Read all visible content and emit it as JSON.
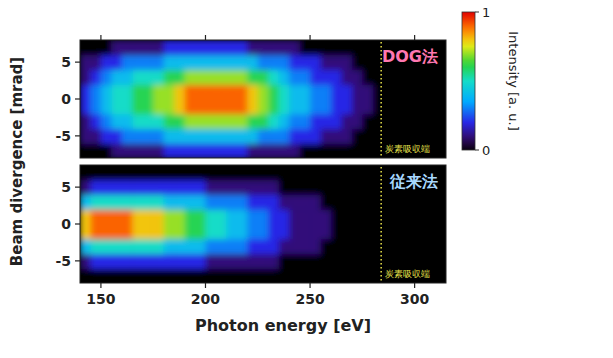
{
  "chart_data": [
    {
      "type": "heatmap",
      "title": "DOG法",
      "ylabel": "Beam divergence [mrad]",
      "xlim": [
        140,
        315
      ],
      "ylim": [
        -8,
        8
      ],
      "xticks": [
        150,
        200,
        250,
        300
      ],
      "yticks": [
        -5,
        0,
        5
      ],
      "tick_labels": "y",
      "x_bins": [
        140,
        145,
        150,
        155,
        160,
        165,
        170,
        175,
        180,
        185,
        190,
        195,
        200,
        205,
        210,
        215,
        220,
        225,
        230,
        235,
        240,
        245,
        250,
        255,
        260,
        265,
        270,
        275,
        280,
        285,
        290,
        295,
        300,
        305,
        310,
        315
      ],
      "y_bins": [
        -8,
        -6,
        -4,
        -2,
        0,
        2,
        4,
        6,
        8
      ],
      "cells": [
        [
          0,
          0,
          0,
          0.1,
          0.1,
          0.1,
          0.1,
          0.1,
          0.2,
          0.2,
          0.2,
          0.2,
          0.2,
          0.2,
          0.2,
          0.2,
          0.1,
          0.1,
          0.1,
          0.1,
          0.1,
          0,
          0,
          0,
          0,
          0,
          0,
          0,
          0,
          0,
          0,
          0,
          0,
          0,
          0
        ],
        [
          0.1,
          0.1,
          0.2,
          0.2,
          0.3,
          0.3,
          0.3,
          0.3,
          0.4,
          0.4,
          0.4,
          0.4,
          0.4,
          0.4,
          0.4,
          0.4,
          0.4,
          0.3,
          0.3,
          0.3,
          0.2,
          0.2,
          0.2,
          0.1,
          0.1,
          0.1,
          0,
          0,
          0,
          0,
          0,
          0,
          0,
          0,
          0
        ],
        [
          0.1,
          0.2,
          0.3,
          0.4,
          0.4,
          0.5,
          0.5,
          0.5,
          0.6,
          0.6,
          0.7,
          0.7,
          0.7,
          0.7,
          0.7,
          0.7,
          0.6,
          0.6,
          0.5,
          0.4,
          0.3,
          0.3,
          0.2,
          0.2,
          0.2,
          0.1,
          0.1,
          0,
          0,
          0,
          0,
          0,
          0,
          0,
          0
        ],
        [
          0.2,
          0.3,
          0.4,
          0.5,
          0.5,
          0.6,
          0.6,
          0.7,
          0.7,
          0.8,
          0.9,
          0.9,
          0.9,
          0.9,
          0.9,
          0.9,
          0.8,
          0.7,
          0.6,
          0.5,
          0.4,
          0.4,
          0.3,
          0.3,
          0.2,
          0.2,
          0.1,
          0.1,
          0,
          0,
          0,
          0,
          0,
          0,
          0
        ],
        [
          0.2,
          0.3,
          0.4,
          0.5,
          0.5,
          0.6,
          0.6,
          0.7,
          0.7,
          0.8,
          0.9,
          0.9,
          0.9,
          0.9,
          0.9,
          0.9,
          0.8,
          0.7,
          0.6,
          0.5,
          0.4,
          0.4,
          0.3,
          0.3,
          0.2,
          0.2,
          0.1,
          0.1,
          0,
          0,
          0,
          0,
          0,
          0,
          0
        ],
        [
          0.1,
          0.2,
          0.3,
          0.4,
          0.4,
          0.5,
          0.5,
          0.5,
          0.6,
          0.6,
          0.7,
          0.7,
          0.7,
          0.7,
          0.7,
          0.7,
          0.6,
          0.6,
          0.5,
          0.4,
          0.3,
          0.3,
          0.2,
          0.2,
          0.2,
          0.1,
          0.1,
          0,
          0,
          0,
          0,
          0,
          0,
          0,
          0
        ],
        [
          0.1,
          0.1,
          0.2,
          0.2,
          0.3,
          0.3,
          0.3,
          0.3,
          0.4,
          0.4,
          0.4,
          0.4,
          0.4,
          0.4,
          0.4,
          0.4,
          0.4,
          0.3,
          0.3,
          0.3,
          0.2,
          0.2,
          0.2,
          0.1,
          0.1,
          0.1,
          0,
          0,
          0,
          0,
          0,
          0,
          0,
          0,
          0
        ],
        [
          0,
          0,
          0,
          0.1,
          0.1,
          0.1,
          0.1,
          0.1,
          0.2,
          0.2,
          0.2,
          0.2,
          0.2,
          0.2,
          0.2,
          0.2,
          0.1,
          0.1,
          0.1,
          0.1,
          0.1,
          0,
          0,
          0,
          0,
          0,
          0,
          0,
          0,
          0,
          0,
          0,
          0,
          0,
          0
        ]
      ],
      "annotations": [
        {
          "x": 284,
          "label": "炭素吸収端"
        }
      ],
      "colorbar": {
        "range": [
          0,
          1
        ],
        "ticks": [
          0,
          1
        ],
        "label": "Intensity [a. u.]"
      }
    },
    {
      "type": "heatmap",
      "title": "従来法",
      "xlabel": "Photon energy [eV]",
      "xlim": [
        140,
        315
      ],
      "ylim": [
        -8,
        8
      ],
      "xticks": [
        150,
        200,
        250,
        300
      ],
      "yticks": [
        -5,
        0,
        5
      ],
      "x_bins": [
        140,
        145,
        150,
        155,
        160,
        165,
        170,
        175,
        180,
        185,
        190,
        195,
        200,
        205,
        210,
        215,
        220,
        225,
        230,
        235,
        240,
        245,
        250,
        255,
        260,
        265,
        270,
        275,
        280,
        285,
        290,
        295,
        300,
        305,
        310,
        315
      ],
      "y_bins": [
        -8,
        -6,
        -4,
        -2,
        0,
        2,
        4,
        6,
        8
      ],
      "cells": [
        [
          0,
          0,
          0,
          0,
          0,
          0,
          0,
          0,
          0,
          0,
          0,
          0,
          0,
          0,
          0,
          0,
          0,
          0,
          0,
          0,
          0,
          0,
          0,
          0,
          0,
          0,
          0,
          0,
          0,
          0,
          0,
          0,
          0,
          0,
          0
        ],
        [
          0.1,
          0.2,
          0.2,
          0.2,
          0.2,
          0.2,
          0.2,
          0.2,
          0.2,
          0.2,
          0.2,
          0.2,
          0.1,
          0.1,
          0.1,
          0.1,
          0.1,
          0.1,
          0.1,
          0,
          0,
          0,
          0,
          0,
          0,
          0,
          0,
          0,
          0,
          0,
          0,
          0,
          0,
          0,
          0
        ],
        [
          0.4,
          0.5,
          0.5,
          0.5,
          0.5,
          0.5,
          0.5,
          0.5,
          0.4,
          0.4,
          0.4,
          0.4,
          0.3,
          0.3,
          0.3,
          0.3,
          0.2,
          0.2,
          0.2,
          0.1,
          0.1,
          0.1,
          0.1,
          0,
          0,
          0,
          0,
          0,
          0,
          0,
          0,
          0,
          0,
          0,
          0
        ],
        [
          0.8,
          0.9,
          0.9,
          0.9,
          0.9,
          0.8,
          0.8,
          0.8,
          0.7,
          0.7,
          0.6,
          0.6,
          0.5,
          0.5,
          0.4,
          0.4,
          0.3,
          0.3,
          0.2,
          0.2,
          0.1,
          0.1,
          0.1,
          0.1,
          0,
          0,
          0,
          0,
          0,
          0,
          0,
          0,
          0,
          0,
          0
        ],
        [
          0.8,
          0.9,
          0.9,
          0.9,
          0.9,
          0.8,
          0.8,
          0.8,
          0.7,
          0.7,
          0.6,
          0.6,
          0.5,
          0.5,
          0.4,
          0.4,
          0.3,
          0.3,
          0.2,
          0.2,
          0.1,
          0.1,
          0.1,
          0.1,
          0,
          0,
          0,
          0,
          0,
          0,
          0,
          0,
          0,
          0,
          0
        ],
        [
          0.4,
          0.5,
          0.5,
          0.5,
          0.5,
          0.5,
          0.5,
          0.5,
          0.4,
          0.4,
          0.4,
          0.4,
          0.3,
          0.3,
          0.3,
          0.3,
          0.2,
          0.2,
          0.2,
          0.1,
          0.1,
          0.1,
          0.1,
          0,
          0,
          0,
          0,
          0,
          0,
          0,
          0,
          0,
          0,
          0,
          0
        ],
        [
          0.1,
          0.2,
          0.2,
          0.2,
          0.2,
          0.2,
          0.2,
          0.2,
          0.2,
          0.2,
          0.2,
          0.2,
          0.1,
          0.1,
          0.1,
          0.1,
          0.1,
          0.1,
          0.1,
          0,
          0,
          0,
          0,
          0,
          0,
          0,
          0,
          0,
          0,
          0,
          0,
          0,
          0,
          0,
          0
        ],
        [
          0,
          0,
          0,
          0,
          0,
          0,
          0,
          0,
          0,
          0,
          0,
          0,
          0,
          0,
          0,
          0,
          0,
          0,
          0,
          0,
          0,
          0,
          0,
          0,
          0,
          0,
          0,
          0,
          0,
          0,
          0,
          0,
          0,
          0,
          0
        ]
      ],
      "annotations": [
        {
          "x": 284,
          "label": "炭素吸収端"
        }
      ]
    }
  ]
}
